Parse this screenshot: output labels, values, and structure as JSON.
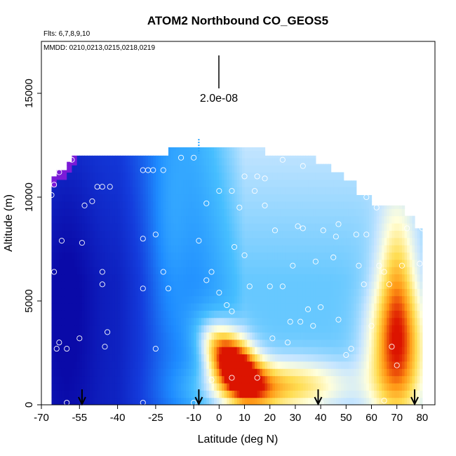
{
  "chart_data": {
    "type": "heatmap",
    "title": "ATOM2 Northbound CO_GEOS5",
    "flights_note": "Flts: 6,7,8,9,10",
    "dates_note": "MMDD: 0210,0213,0215,0218,0219",
    "scale_label": "2.0e-08",
    "xlabel": "Latitude (deg N)",
    "ylabel": "Altitude (m)",
    "xlim": [
      -70,
      85
    ],
    "ylim": [
      0,
      17500
    ],
    "xticks": [
      -70,
      -55,
      -40,
      -25,
      -10,
      0,
      10,
      20,
      30,
      40,
      50,
      60,
      70,
      80
    ],
    "xtick_labels": [
      "-70",
      "-55",
      "-40",
      "-25",
      "-10",
      "0",
      "10",
      "20",
      "30",
      "40",
      "50",
      "60",
      "70",
      "80"
    ],
    "yticks": [
      0,
      5000,
      10000,
      15000
    ],
    "ytick_labels": [
      "0",
      "5000",
      "10000",
      "15000"
    ],
    "colors": {
      "low": "#0a0aa8",
      "mid_low": "#1a6cf0",
      "mid": "#38b8ff",
      "mid_high": "#d6ecff",
      "high": "#ffd84a",
      "max": "#e01a00",
      "purple": "#7a1ad8"
    },
    "profile_arrows_lat": [
      -54,
      -8,
      39,
      77
    ],
    "grid": false,
    "legend": "none"
  }
}
